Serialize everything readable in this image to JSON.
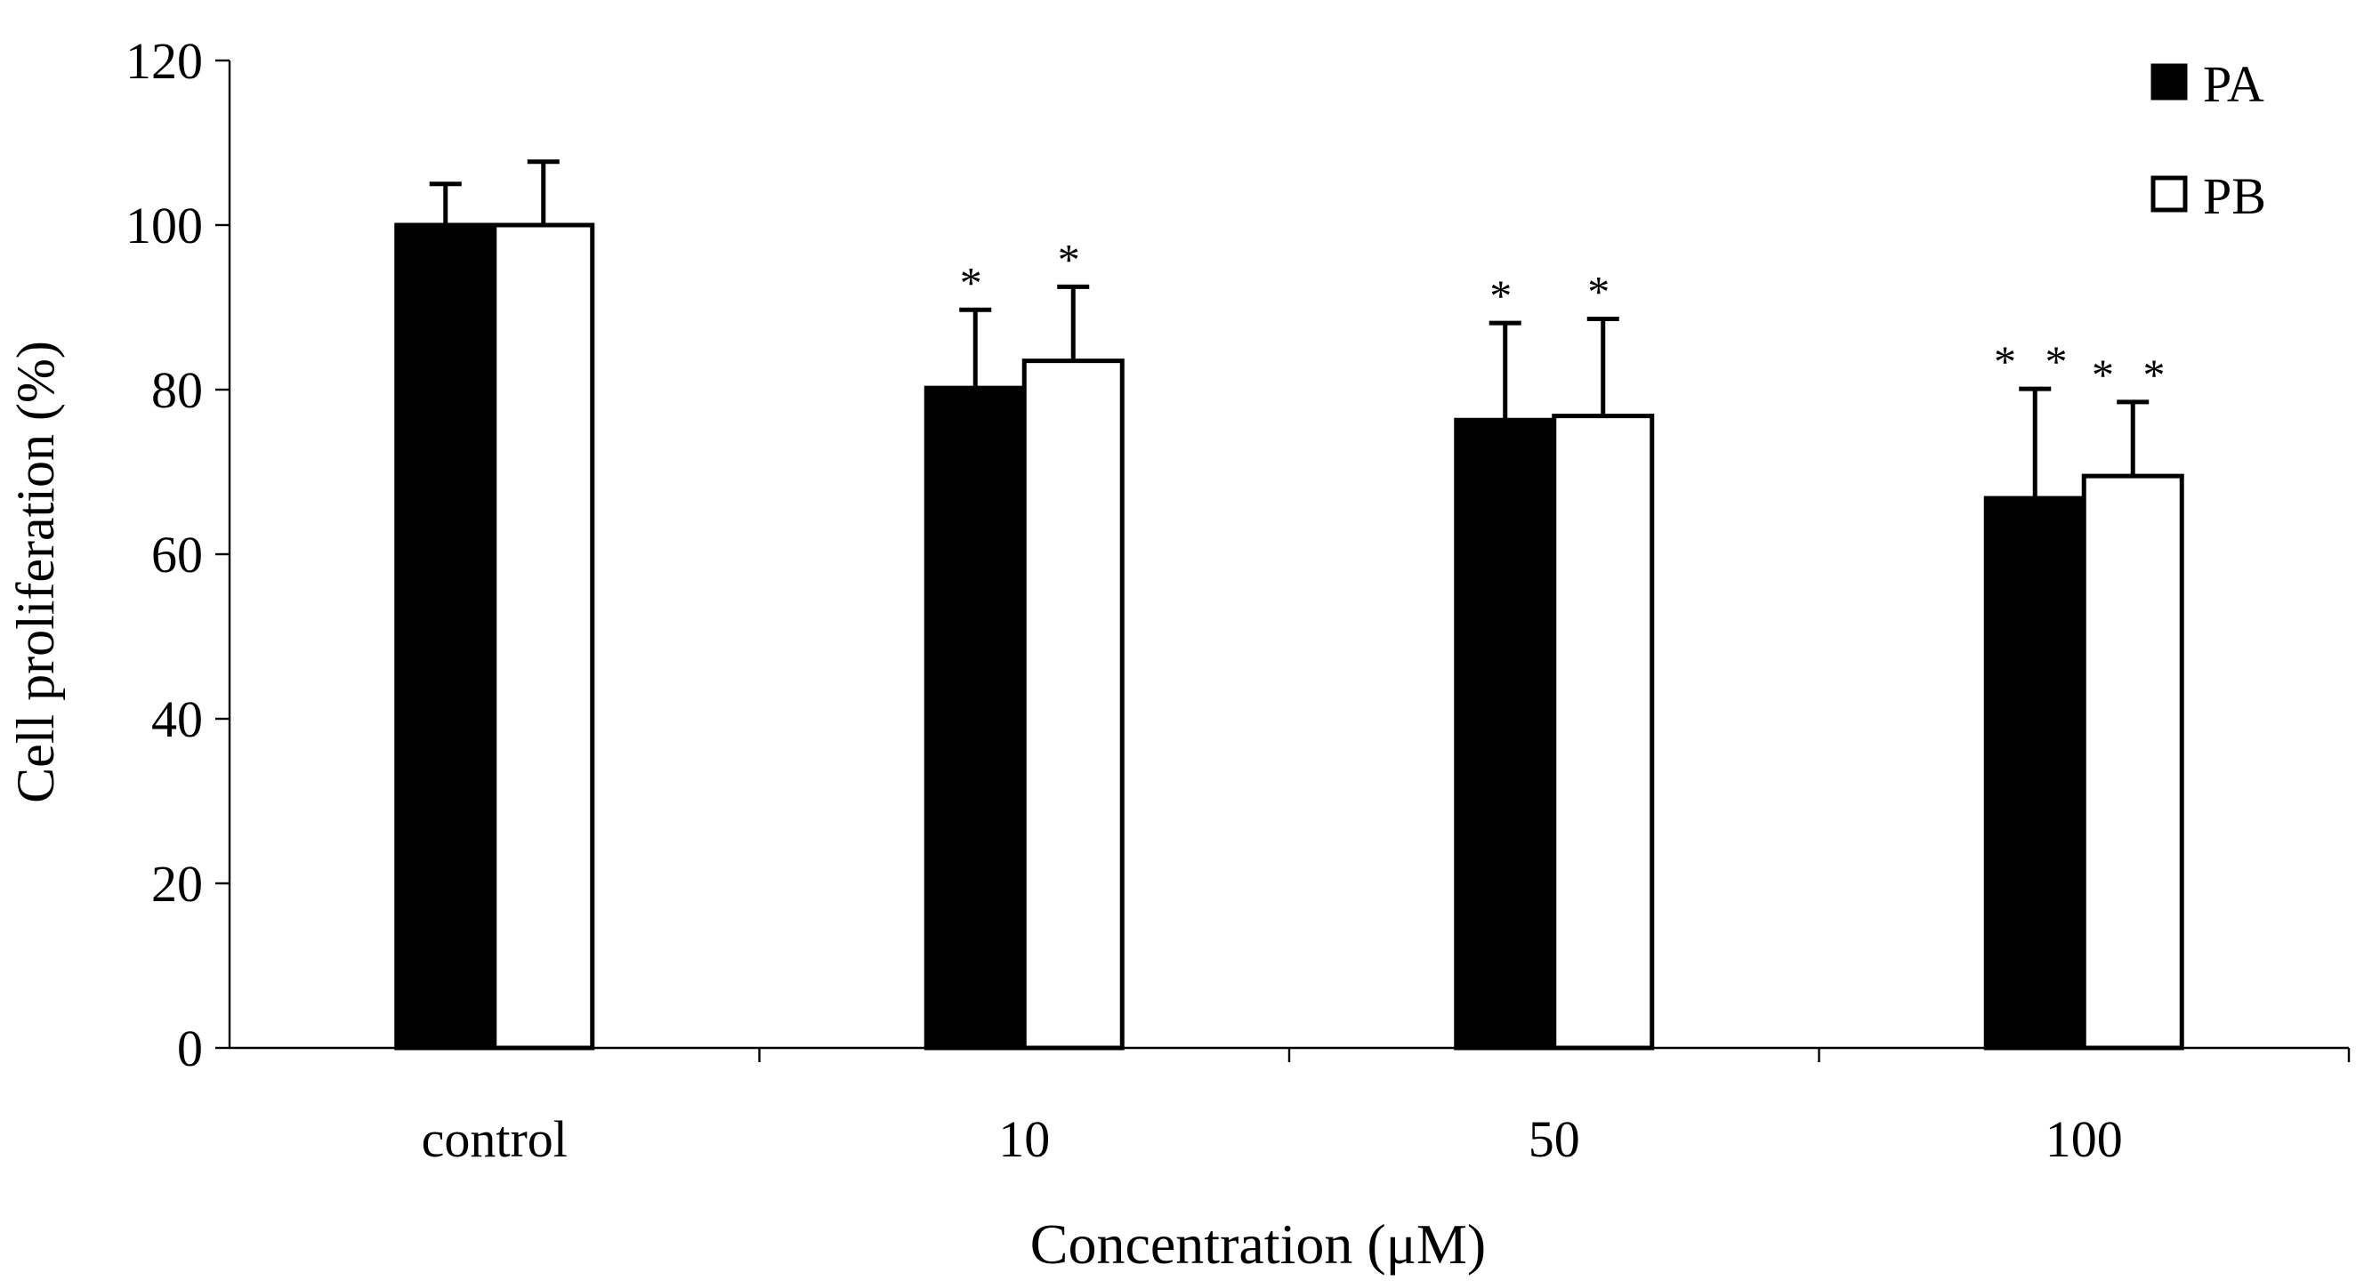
{
  "chart_data": {
    "type": "bar",
    "title": "",
    "xlabel": "Concentration (μM)",
    "ylabel": "Cell proliferation (%)",
    "categories": [
      "control",
      "10",
      "50",
      "100"
    ],
    "ylim": [
      0,
      120
    ],
    "yticks": [
      0,
      20,
      40,
      60,
      80,
      100,
      120
    ],
    "grid": false,
    "legend_position": "top-right",
    "series": [
      {
        "name": "PA",
        "fill": "#000000",
        "values": [
          100,
          80.2,
          76.3,
          66.8
        ],
        "errors": [
          5.0,
          9.5,
          11.8,
          13.3
        ],
        "significance": [
          "",
          "*",
          "*",
          "**"
        ]
      },
      {
        "name": "PB",
        "fill": "#ffffff",
        "values": [
          100,
          83.5,
          76.8,
          69.5
        ],
        "errors": [
          7.7,
          9.0,
          11.8,
          9.0
        ],
        "significance": [
          "",
          "*",
          "*",
          "**"
        ]
      }
    ]
  }
}
